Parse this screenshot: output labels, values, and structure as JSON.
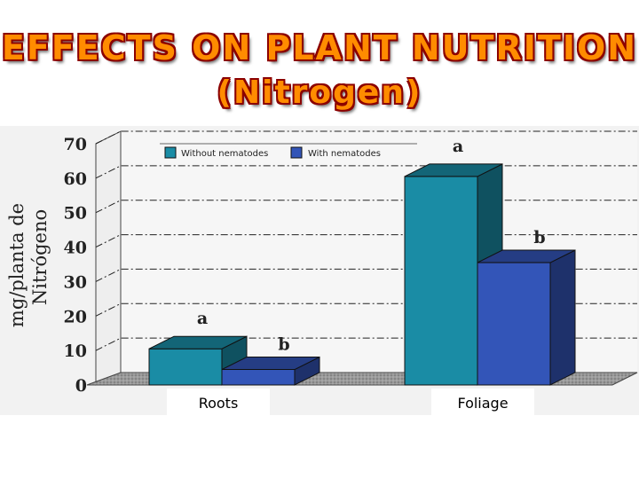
{
  "title": "EFFECTS ON PLANT NUTRITION",
  "subtitle": "(Nitrogen)",
  "chart_data": {
    "type": "bar",
    "title": "",
    "ylabel_line1": "mg/planta de",
    "ylabel_line2": "Nitrógeno",
    "xlabel": "",
    "categories": [
      "Roots",
      "Foliage"
    ],
    "ylim": [
      0,
      70
    ],
    "yticks": [
      "70",
      "60",
      "50",
      "40",
      "30",
      "20",
      "10",
      "0"
    ],
    "series": [
      {
        "name": "Without nematodes",
        "color": "#1a8ca5",
        "values": [
          10.5,
          60.5
        ],
        "labels": [
          "a",
          "a"
        ]
      },
      {
        "name": "With nematodes",
        "color": "#3355b8",
        "values": [
          4.5,
          35.5
        ],
        "labels": [
          "b",
          "b"
        ]
      }
    ],
    "grid": true,
    "legend": "top"
  }
}
